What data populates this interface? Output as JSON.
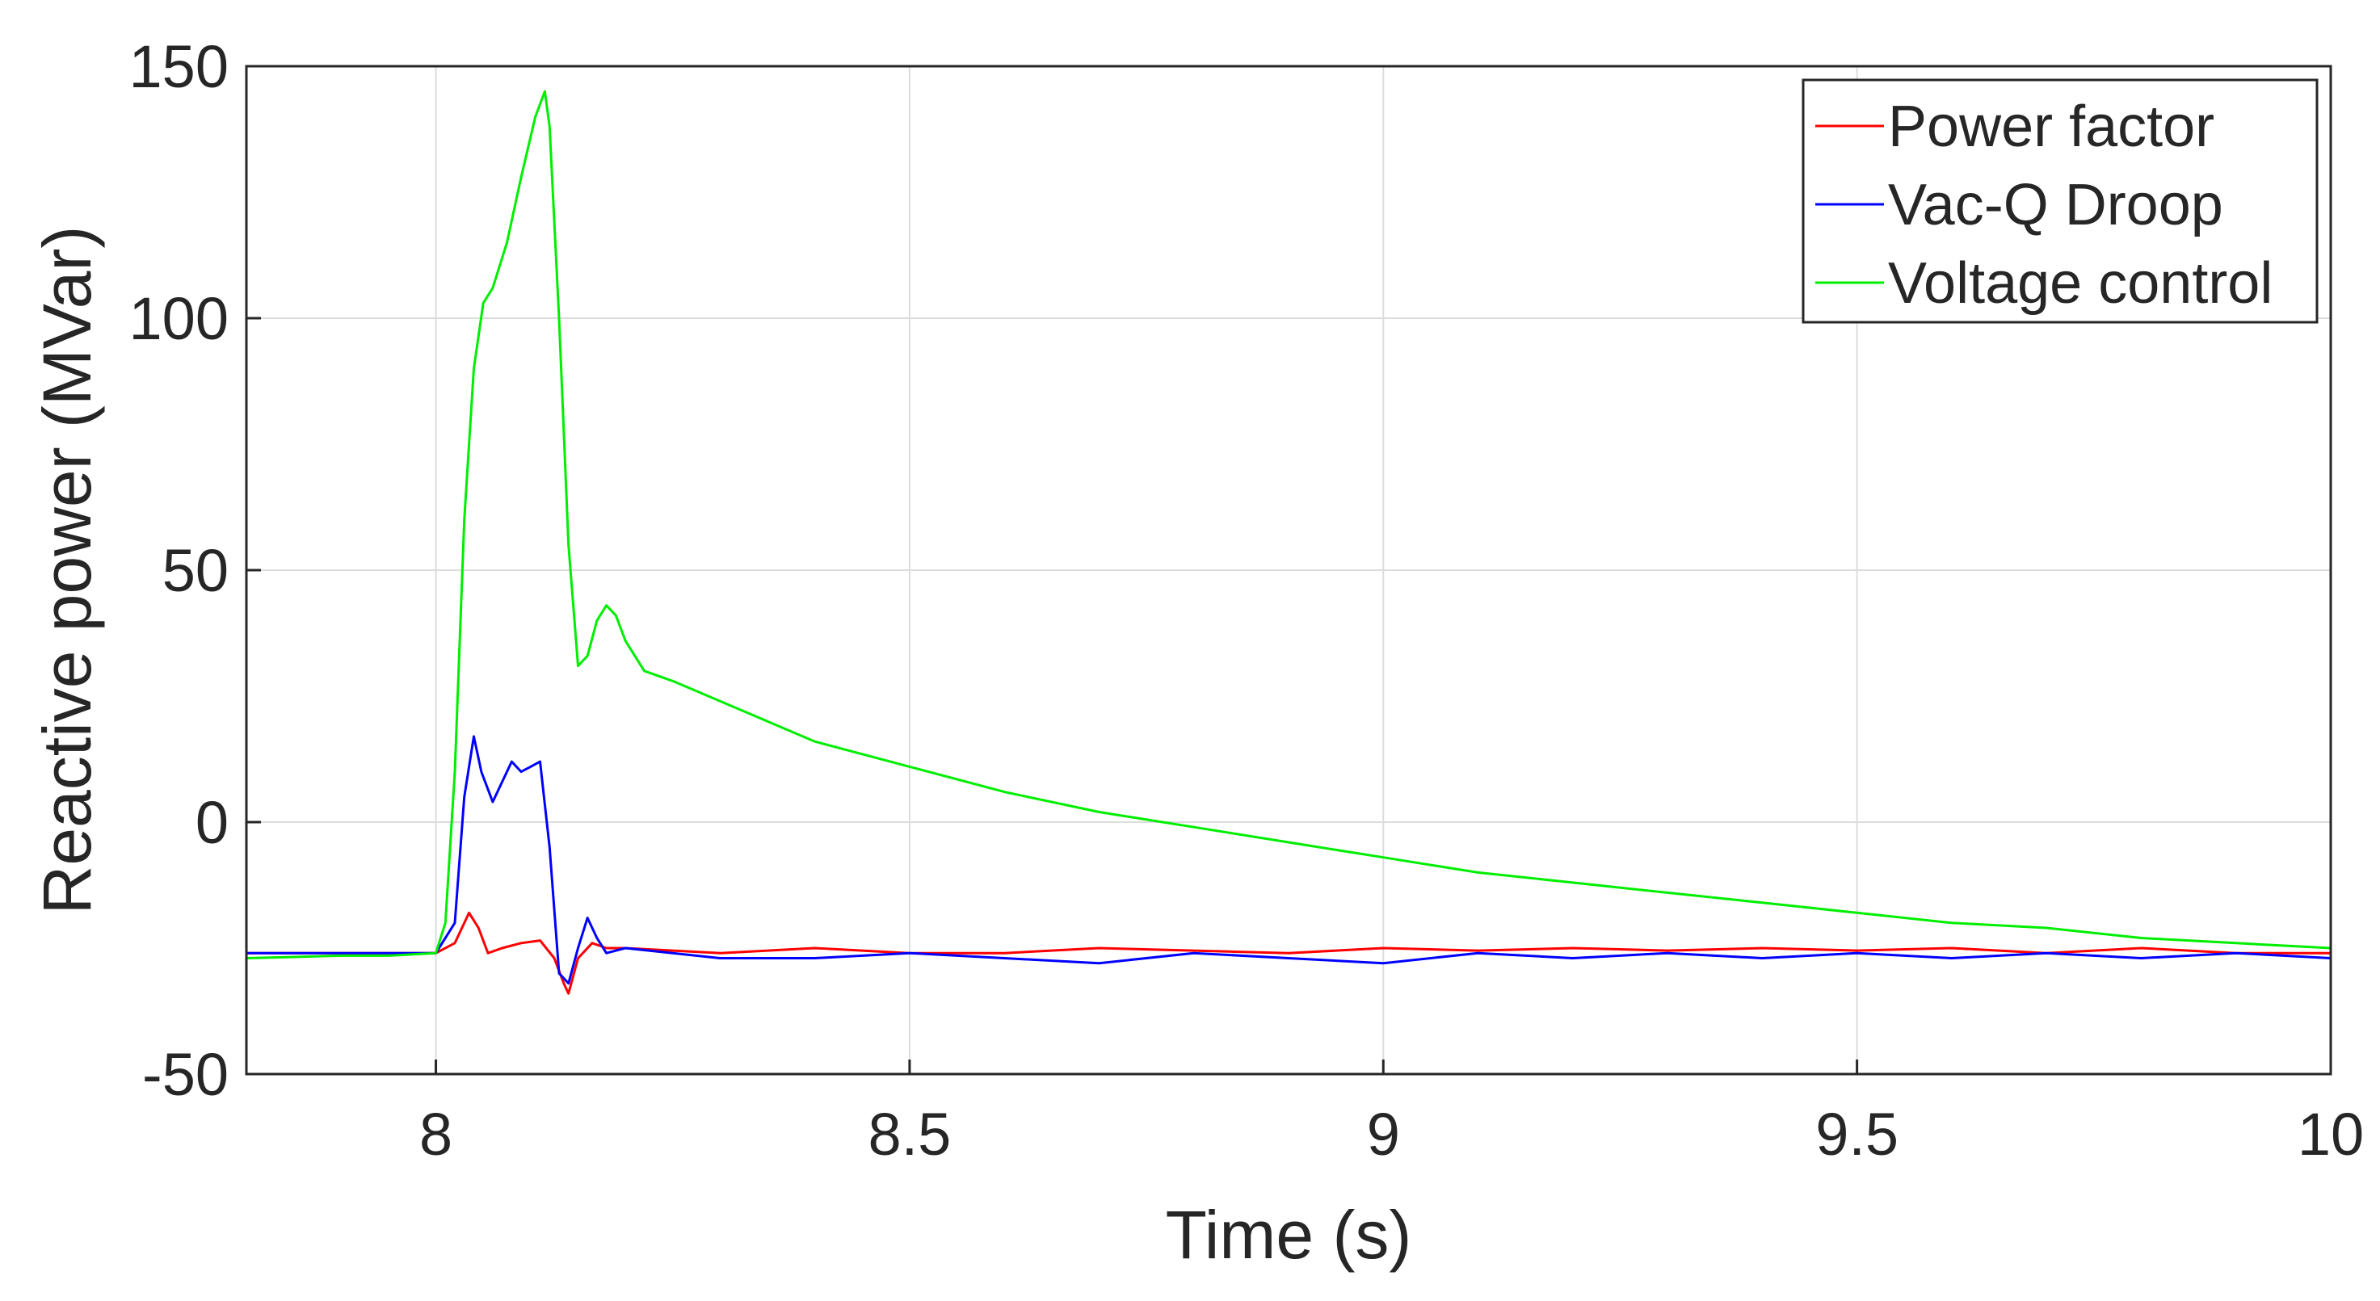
{
  "chart_data": {
    "type": "line",
    "title": "",
    "xlabel": "Time (s)",
    "ylabel": "Reactive power (MVar)",
    "xlim": [
      7.8,
      10
    ],
    "ylim": [
      -50,
      150
    ],
    "xticks": [
      8,
      8.5,
      9,
      9.5,
      10
    ],
    "xtick_labels": [
      "8",
      "8.5",
      "9",
      "9.5",
      "10"
    ],
    "yticks": [
      -50,
      0,
      50,
      100,
      150
    ],
    "ytick_labels": [
      "-50",
      "0",
      "50",
      "100",
      "150"
    ],
    "grid": true,
    "legend_position": "top-right",
    "series": [
      {
        "name": "Power factor",
        "color": "#ff0000",
        "x": [
          7.8,
          7.9,
          8.0,
          8.02,
          8.035,
          8.045,
          8.055,
          8.07,
          8.09,
          8.11,
          8.125,
          8.135,
          8.14,
          8.15,
          8.165,
          8.18,
          8.2,
          8.25,
          8.3,
          8.4,
          8.5,
          8.6,
          8.7,
          8.8,
          8.9,
          9.0,
          9.1,
          9.2,
          9.3,
          9.4,
          9.5,
          9.6,
          9.7,
          9.8,
          9.9,
          10.0
        ],
        "y": [
          -26,
          -26,
          -26,
          -24,
          -18,
          -21,
          -26,
          -25,
          -24,
          -23.5,
          -27,
          -32,
          -34,
          -27,
          -24,
          -25,
          -25,
          -25.5,
          -26,
          -25,
          -26,
          -26,
          -25,
          -25.5,
          -26,
          -25,
          -25.5,
          -25,
          -25.5,
          -25,
          -25.5,
          -25,
          -26,
          -25,
          -26,
          -26
        ]
      },
      {
        "name": "Vac-Q Droop",
        "color": "#0000ff",
        "x": [
          7.8,
          7.9,
          8.0,
          8.02,
          8.03,
          8.04,
          8.048,
          8.06,
          8.07,
          8.08,
          8.09,
          8.1,
          8.11,
          8.12,
          8.13,
          8.14,
          8.15,
          8.16,
          8.17,
          8.18,
          8.2,
          8.25,
          8.3,
          8.4,
          8.5,
          8.6,
          8.7,
          8.8,
          8.9,
          9.0,
          9.1,
          9.2,
          9.3,
          9.4,
          9.5,
          9.6,
          9.7,
          9.8,
          9.9,
          10.0
        ],
        "y": [
          -26,
          -26,
          -26,
          -20,
          5,
          17,
          10,
          4,
          8,
          12,
          10,
          11,
          12,
          -5,
          -30,
          -32,
          -25,
          -19,
          -23,
          -26,
          -25,
          -26,
          -27,
          -27,
          -26,
          -27,
          -28,
          -26,
          -27,
          -28,
          -26,
          -27,
          -26,
          -27,
          -26,
          -27,
          -26,
          -27,
          -26,
          -27
        ]
      },
      {
        "name": "Voltage control",
        "color": "#00ee00",
        "x": [
          7.8,
          7.9,
          7.95,
          8.0,
          8.01,
          8.02,
          8.03,
          8.04,
          8.05,
          8.06,
          8.075,
          8.09,
          8.105,
          8.115,
          8.12,
          8.13,
          8.14,
          8.15,
          8.16,
          8.17,
          8.18,
          8.19,
          8.2,
          8.22,
          8.25,
          8.3,
          8.35,
          8.4,
          8.5,
          8.6,
          8.7,
          8.8,
          8.9,
          9.0,
          9.1,
          9.2,
          9.3,
          9.4,
          9.5,
          9.6,
          9.7,
          9.8,
          9.9,
          10.0
        ],
        "y": [
          -27,
          -26.5,
          -26.5,
          -26,
          -20,
          10,
          60,
          90,
          103,
          106,
          115,
          128,
          140,
          145,
          138,
          100,
          55,
          31,
          33,
          40,
          43,
          41,
          36,
          30,
          28,
          24,
          20,
          16,
          11,
          6,
          2,
          -1,
          -4,
          -7,
          -10,
          -12,
          -14,
          -16,
          -18,
          -20,
          -21,
          -23,
          -24,
          -25
        ]
      }
    ]
  }
}
